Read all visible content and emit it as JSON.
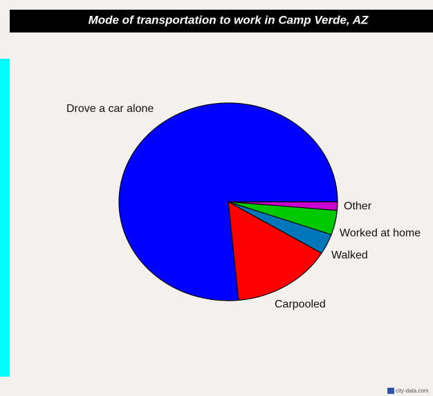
{
  "chart_data": {
    "type": "pie",
    "title": "Mode of transportation to work in Camp Verde, AZ",
    "categories": [
      "Other",
      "Worked at home",
      "Walked",
      "Carpooled",
      "Drove a car alone"
    ],
    "values": [
      1.4,
      4.0,
      3.3,
      14.8,
      76.5
    ],
    "colors": [
      "#cc00cc",
      "#00c800",
      "#0077bb",
      "#ff0000",
      "#0000ff"
    ],
    "watermark": "city-data.com"
  }
}
